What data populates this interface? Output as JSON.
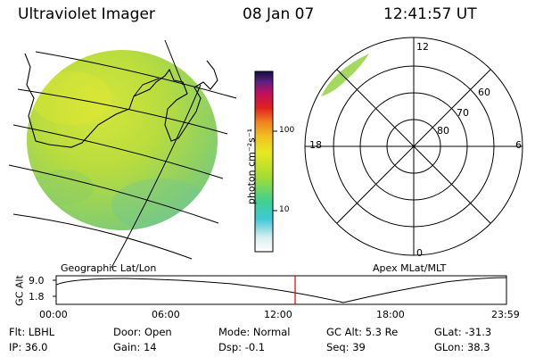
{
  "header": {
    "instrument": "Ultraviolet Imager",
    "date": "08 Jan 07",
    "time": "12:41:57 UT"
  },
  "colorbar": {
    "unit_label": "photon cm⁻²s⁻¹",
    "ticks": [
      "100",
      "10"
    ]
  },
  "polar_plot": {
    "mlt_labels": [
      "12",
      "18",
      "6",
      "0"
    ],
    "mlat_labels": [
      "60",
      "70",
      "80"
    ]
  },
  "map_labels": {
    "left": "Geographic Lat/Lon",
    "right": "Apex MLat/MLT"
  },
  "altitude_strip": {
    "ylabel": "GC Alt",
    "y_ticks": [
      "9.0",
      "1.8"
    ],
    "x_ticks": [
      "00:00",
      "06:00",
      "12:00",
      "18:00",
      "23:59"
    ],
    "current_time_marker": "12:41:57",
    "marker_color": "#dd0000"
  },
  "status": {
    "row1": [
      {
        "label": "Flt:",
        "value": "LBHL"
      },
      {
        "label": "Door:",
        "value": "Open"
      },
      {
        "label": "Mode:",
        "value": "Normal"
      },
      {
        "label": "GC Alt:",
        "value": "5.3 Re"
      },
      {
        "label": "GLat:",
        "value": "-31.3"
      }
    ],
    "row2": [
      {
        "label": "IP:",
        "value": "36.0"
      },
      {
        "label": "Gain:",
        "value": "14"
      },
      {
        "label": "Dsp:",
        "value": "-0.1"
      },
      {
        "label": "Seq:",
        "value": "39"
      },
      {
        "label": "GLon:",
        "value": "38.3"
      }
    ]
  }
}
